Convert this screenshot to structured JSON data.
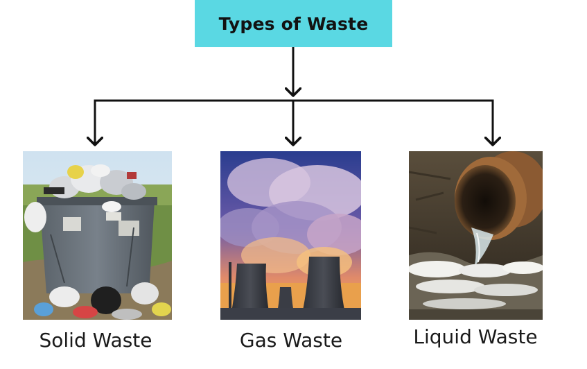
{
  "title": "Types of Waste",
  "branches": [
    {
      "label": "Solid Waste",
      "image": "overflowing-dumpster-photo"
    },
    {
      "label": "Gas Waste",
      "image": "cooling-towers-smoke-photo"
    },
    {
      "label": "Liquid Waste",
      "image": "sewage-pipe-discharge-photo"
    }
  ],
  "colors": {
    "title_background": "#5ad8e3",
    "connector": "#111111"
  }
}
